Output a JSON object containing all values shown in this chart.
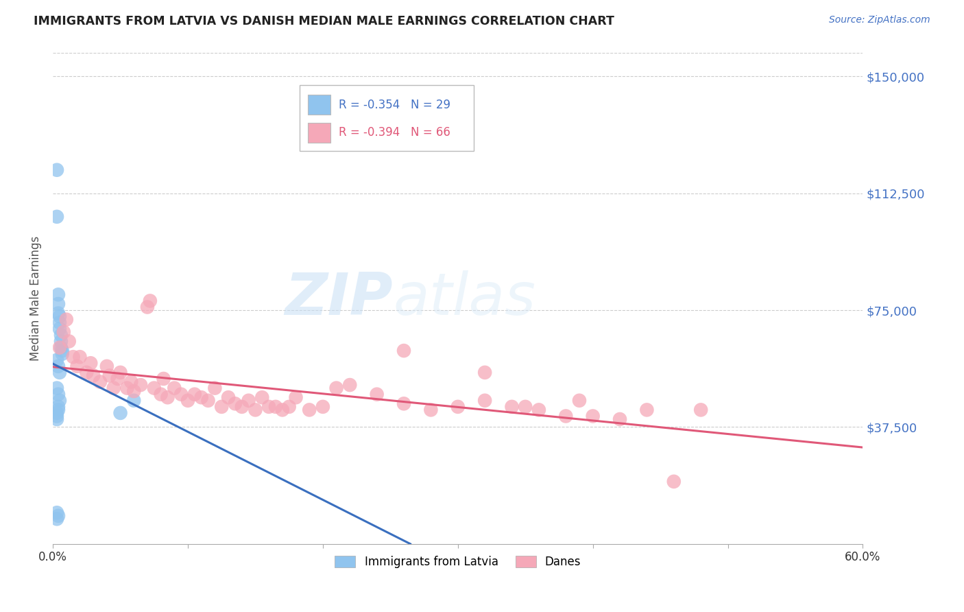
{
  "title": "IMMIGRANTS FROM LATVIA VS DANISH MEDIAN MALE EARNINGS CORRELATION CHART",
  "source": "Source: ZipAtlas.com",
  "ylabel": "Median Male Earnings",
  "xlim": [
    0.0,
    0.6
  ],
  "ylim": [
    0,
    157500
  ],
  "yticks": [
    0,
    37500,
    75000,
    112500,
    150000
  ],
  "ytick_labels": [
    "",
    "$37,500",
    "$75,000",
    "$112,500",
    "$150,000"
  ],
  "xtick_labels": [
    "0.0%",
    "",
    "",
    "",
    "",
    "",
    "60.0%"
  ],
  "legend_label1": "Immigrants from Latvia",
  "legend_label2": "Danes",
  "r1": "-0.354",
  "n1": "29",
  "r2": "-0.394",
  "n2": "66",
  "color_blue": "#90C4EE",
  "color_pink": "#F5A8B8",
  "color_blue_dark": "#3A6FBF",
  "color_pink_dark": "#E05878",
  "color_axis_label": "#4472C4",
  "color_title": "#222222",
  "watermark_zip": "ZIP",
  "watermark_atlas": "atlas",
  "blue_points_x": [
    0.003,
    0.003,
    0.004,
    0.004,
    0.004,
    0.005,
    0.005,
    0.005,
    0.006,
    0.006,
    0.006,
    0.007,
    0.007,
    0.003,
    0.004,
    0.005,
    0.003,
    0.004,
    0.005,
    0.004,
    0.004,
    0.003,
    0.003,
    0.003,
    0.05,
    0.06,
    0.003,
    0.004,
    0.003
  ],
  "blue_points_y": [
    120000,
    105000,
    80000,
    77000,
    74000,
    73000,
    71000,
    69000,
    67000,
    65000,
    63000,
    62000,
    61000,
    59000,
    57000,
    55000,
    50000,
    48000,
    46000,
    44000,
    43000,
    42000,
    41000,
    40000,
    42000,
    46000,
    8000,
    9000,
    10000
  ],
  "pink_points_x": [
    0.005,
    0.008,
    0.01,
    0.012,
    0.015,
    0.018,
    0.02,
    0.025,
    0.028,
    0.03,
    0.035,
    0.04,
    0.042,
    0.045,
    0.048,
    0.05,
    0.055,
    0.058,
    0.06,
    0.065,
    0.07,
    0.072,
    0.075,
    0.08,
    0.082,
    0.085,
    0.09,
    0.095,
    0.1,
    0.105,
    0.11,
    0.115,
    0.12,
    0.125,
    0.13,
    0.135,
    0.14,
    0.145,
    0.15,
    0.155,
    0.16,
    0.165,
    0.17,
    0.175,
    0.18,
    0.19,
    0.2,
    0.21,
    0.22,
    0.24,
    0.26,
    0.28,
    0.3,
    0.32,
    0.34,
    0.36,
    0.38,
    0.4,
    0.42,
    0.44,
    0.46,
    0.48,
    0.35,
    0.39,
    0.26,
    0.32
  ],
  "pink_points_y": [
    63000,
    68000,
    72000,
    65000,
    60000,
    57000,
    60000,
    55000,
    58000,
    54000,
    52000,
    57000,
    54000,
    50000,
    53000,
    55000,
    50000,
    52000,
    49000,
    51000,
    76000,
    78000,
    50000,
    48000,
    53000,
    47000,
    50000,
    48000,
    46000,
    48000,
    47000,
    46000,
    50000,
    44000,
    47000,
    45000,
    44000,
    46000,
    43000,
    47000,
    44000,
    44000,
    43000,
    44000,
    47000,
    43000,
    44000,
    50000,
    51000,
    48000,
    45000,
    43000,
    44000,
    46000,
    44000,
    43000,
    41000,
    41000,
    40000,
    43000,
    20000,
    43000,
    44000,
    46000,
    62000,
    55000
  ]
}
